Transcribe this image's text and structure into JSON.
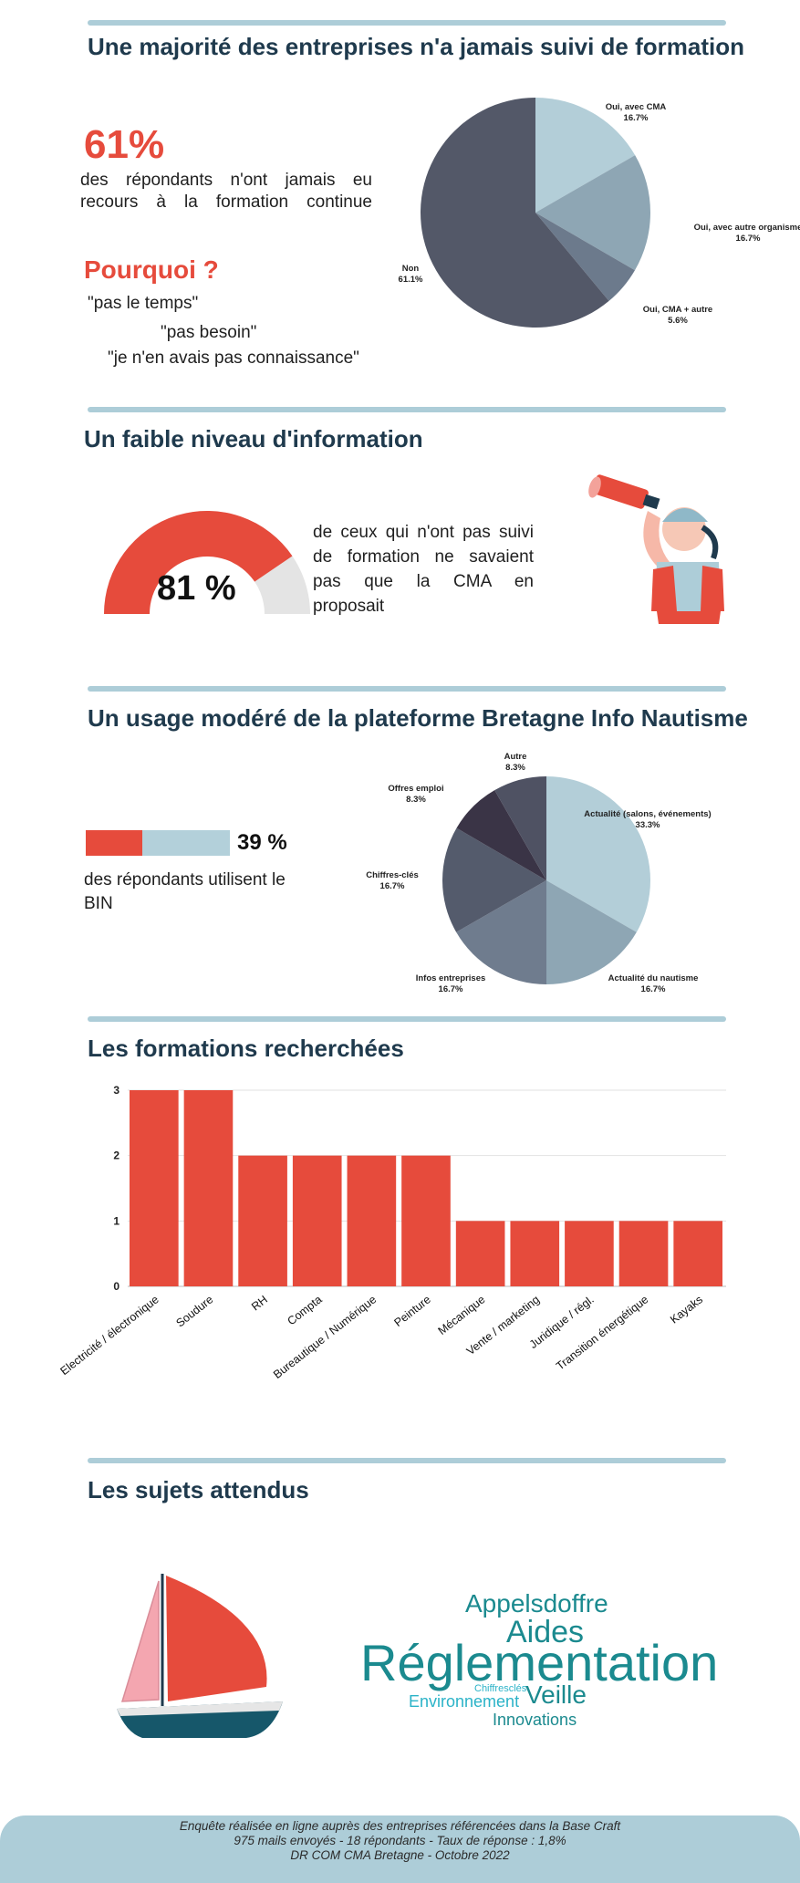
{
  "section1": {
    "title": "Une majorité des entreprises n'a jamais suivi de formation",
    "stat": "61%",
    "stat_text": "des répondants n'ont jamais eu recours à la formation continue",
    "why_title": "Pourquoi ?",
    "quotes": [
      "\"pas le temps\"",
      "\"pas besoin\"",
      "\"je n'en avais pas connaissance\""
    ]
  },
  "section2": {
    "title": "Un faible niveau d'information",
    "gauge_value": "81 %",
    "gauge_fraction": 0.81,
    "text": "de ceux qui n'ont pas suivi de formation ne savaient pas que la CMA en proposait"
  },
  "section3": {
    "title": "Un usage modéré de la plateforme Bretagne Info Nautisme",
    "bar_value": "39 %",
    "bar_fraction": 0.39,
    "text": "des répondants utilisent le BIN"
  },
  "section4": {
    "title": "Les formations recherchées"
  },
  "section5": {
    "title": "Les sujets attendus",
    "words": [
      "Appelsdoffre",
      "Aides",
      "Réglementation",
      "Chiffresclés",
      "Environnement",
      "Veille",
      "Innovations"
    ]
  },
  "footer": {
    "line1": "Enquête réalisée en ligne auprès des entreprises référencées dans la Base Craft",
    "line2": "975 mails envoyés - 18 répondants - Taux de réponse : 1,8%",
    "line3": "DR COM CMA Bretagne - Octobre 2022"
  },
  "colors": {
    "red": "#e64b3c",
    "navy": "#1f3a4d",
    "light_blue": "#adcdd8",
    "teal": "#1b8a8f",
    "cyan": "#2bb3c8"
  },
  "chart_data": [
    {
      "type": "pie",
      "categories": [
        "Oui, avec CMA",
        "Oui, avec autre organisme",
        "Oui, CMA + autre",
        "Non"
      ],
      "values": [
        16.7,
        16.7,
        5.6,
        61.1
      ],
      "value_labels": [
        "16.7%",
        "16.7%",
        "5.6%",
        "61.1%"
      ],
      "colors": [
        "#b3ced8",
        "#8ea6b4",
        "#6c7a8c",
        "#535868"
      ]
    },
    {
      "type": "pie",
      "categories": [
        "Actualité (salons, événements)",
        "Actualité du nautisme",
        "Infos entreprises",
        "Chiffres-clés",
        "Offres emploi",
        "Autre"
      ],
      "values": [
        33.3,
        16.7,
        16.7,
        16.7,
        8.3,
        8.3
      ],
      "value_labels": [
        "33.3%",
        "16.7%",
        "16.7%",
        "16.7%",
        "8.3%",
        "8.3%"
      ],
      "colors": [
        "#b3ced8",
        "#8ea6b4",
        "#6f7c8e",
        "#545b6c",
        "#3a3446",
        "#4f5263"
      ]
    },
    {
      "type": "bar",
      "categories": [
        "Electricité / électronique",
        "Soudure",
        "RH",
        "Compta",
        "Bureautique / Numérique",
        "Peinture",
        "Mécanique",
        "Vente / marketing",
        "Juridique / régl.",
        "Transition énergétique",
        "Kayaks"
      ],
      "values": [
        3,
        3,
        2,
        2,
        2,
        2,
        1,
        1,
        1,
        1,
        1
      ],
      "ylim": [
        0,
        3
      ],
      "yticks": [
        "0",
        "1",
        "2",
        "3"
      ],
      "color": "#e64b3c",
      "grid": true
    }
  ]
}
